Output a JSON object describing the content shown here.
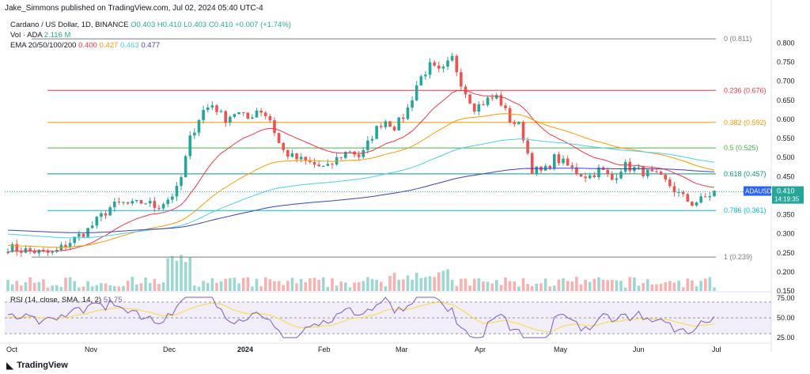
{
  "attribution": "Jake_Simmons published on TradingView.com, Jul 02, 2024 05:40 UTC-4",
  "legend": {
    "symbol": "Cardano / US Dollar, 1D, BINANCE",
    "ohlc": "O0.403 H0.410 L0.403 C0.410 +0.007 (+1.74%)",
    "volume_label": "Vol · ADA",
    "volume_value": "2.116 M",
    "ema_label": "EMA 20/50/100/200",
    "ema_values": [
      "0.400",
      "0.427",
      "0.463",
      "0.477"
    ],
    "rsi_label": "RSI (14, close, SMA, 14, 2)",
    "rsi_value": "51.75"
  },
  "price_tag": {
    "symbol": "ADAUSD",
    "price": "0.410",
    "countdown": "14:19:35"
  },
  "brand": "TradingView",
  "colors": {
    "up": "#26a69a",
    "down": "#ef5350",
    "ema20": "#f23645",
    "ema50": "#ff9800",
    "ema100": "#4dd0e1",
    "ema200": "#3f3fbf",
    "rsi": "#7e57c2",
    "rsi_ma": "#fdd835"
  },
  "chart_data": {
    "type": "candlestick",
    "title": "Cardano / US Dollar, 1D, BINANCE",
    "price_axis": {
      "ticks": [
        "0.800",
        "0.750",
        "0.700",
        "0.650",
        "0.600",
        "0.550",
        "0.500",
        "0.450",
        "0.400",
        "0.350",
        "0.300",
        "0.250",
        "0.200",
        "0.150"
      ],
      "ylim": [
        0.15,
        0.83
      ]
    },
    "time_axis": {
      "labels": [
        "Oct",
        "Nov",
        "Dec",
        "2024",
        "Feb",
        "Mar",
        "Apr",
        "May",
        "Jun",
        "Jul"
      ]
    },
    "fib_levels": [
      {
        "label": "0 (0.811)",
        "value": 0.811,
        "color": "#787b86"
      },
      {
        "label": "0.236 (0.676)",
        "value": 0.676,
        "color": "#f23645"
      },
      {
        "label": "0.382 (0.592)",
        "value": 0.592,
        "color": "#ff9800"
      },
      {
        "label": "0.5 (0.525)",
        "value": 0.525,
        "color": "#4caf50"
      },
      {
        "label": "0.618 (0.457)",
        "value": 0.457,
        "color": "#089981"
      },
      {
        "label": "0.786 (0.361)",
        "value": 0.361,
        "color": "#00bcd4"
      },
      {
        "label": "1 (0.239)",
        "value": 0.239,
        "color": "#787b86"
      }
    ],
    "price_path": [
      [
        "Oct",
        0.265
      ],
      [
        "Oct",
        0.258
      ],
      [
        "Oct",
        0.255
      ],
      [
        "Oct",
        0.25
      ],
      [
        "Oct",
        0.248
      ],
      [
        "Oct",
        0.27
      ],
      [
        "Oct",
        0.29
      ],
      [
        "Nov",
        0.31
      ],
      [
        "Nov",
        0.34
      ],
      [
        "Nov",
        0.37
      ],
      [
        "Nov",
        0.38
      ],
      [
        "Nov",
        0.375
      ],
      [
        "Nov",
        0.385
      ],
      [
        "Nov",
        0.37
      ],
      [
        "Dec",
        0.39
      ],
      [
        "Dec",
        0.42
      ],
      [
        "Dec",
        0.55
      ],
      [
        "Dec",
        0.62
      ],
      [
        "Dec",
        0.64
      ],
      [
        "Dec",
        0.6
      ],
      [
        "Dec",
        0.62
      ],
      [
        "Dec",
        0.6
      ],
      [
        "Dec",
        0.63
      ],
      [
        "2024",
        0.6
      ],
      [
        "2024",
        0.52
      ],
      [
        "2024",
        0.5
      ],
      [
        "2024",
        0.49
      ],
      [
        "2024",
        0.48
      ],
      [
        "2024",
        0.47
      ],
      [
        "Feb",
        0.5
      ],
      [
        "Feb",
        0.52
      ],
      [
        "Feb",
        0.5
      ],
      [
        "Feb",
        0.56
      ],
      [
        "Feb",
        0.6
      ],
      [
        "Feb",
        0.58
      ],
      [
        "Feb",
        0.62
      ],
      [
        "Mar",
        0.7
      ],
      [
        "Mar",
        0.74
      ],
      [
        "Mar",
        0.72
      ],
      [
        "Mar",
        0.76
      ],
      [
        "Mar",
        0.68
      ],
      [
        "Mar",
        0.63
      ],
      [
        "Mar",
        0.65
      ],
      [
        "Mar",
        0.66
      ],
      [
        "Apr",
        0.6
      ],
      [
        "Apr",
        0.58
      ],
      [
        "Apr",
        0.47
      ],
      [
        "Apr",
        0.46
      ],
      [
        "Apr",
        0.5
      ],
      [
        "Apr",
        0.48
      ],
      [
        "May",
        0.46
      ],
      [
        "May",
        0.45
      ],
      [
        "May",
        0.47
      ],
      [
        "May",
        0.44
      ],
      [
        "May",
        0.48
      ],
      [
        "May",
        0.47
      ],
      [
        "Jun",
        0.46
      ],
      [
        "Jun",
        0.45
      ],
      [
        "Jun",
        0.43
      ],
      [
        "Jun",
        0.4
      ],
      [
        "Jun",
        0.38
      ],
      [
        "Jun",
        0.39
      ],
      [
        "Jul",
        0.41
      ]
    ],
    "ema_last": {
      "ema20": 0.4,
      "ema50": 0.427,
      "ema100": 0.463,
      "ema200": 0.477
    },
    "rsi_axis": {
      "ticks": [
        "75.00",
        "50.00",
        "25.00"
      ],
      "ylim": [
        20,
        80
      ]
    },
    "rsi_last": 51.75
  }
}
